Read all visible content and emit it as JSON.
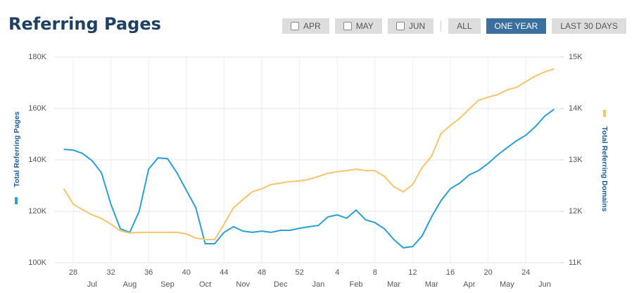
{
  "header": {
    "title": "Referring Pages"
  },
  "controls": {
    "checkboxes": [
      "APR",
      "MAY",
      "JUN"
    ],
    "buttons": [
      "ALL",
      "ONE YEAR",
      "LAST 30 DAYS"
    ],
    "active_button": 1
  },
  "chart_data": {
    "type": "line",
    "categories": [
      null,
      "28",
      null,
      null,
      null,
      "32",
      null,
      null,
      null,
      "36",
      null,
      null,
      null,
      "40",
      null,
      null,
      null,
      "44",
      null,
      null,
      null,
      "48",
      null,
      null,
      null,
      "52",
      null,
      null,
      null,
      "4",
      null,
      null,
      null,
      "8",
      null,
      null,
      null,
      "12",
      null,
      null,
      null,
      "16",
      null,
      null,
      null,
      "20",
      null,
      null,
      null,
      "24",
      null,
      null,
      null
    ],
    "month_labels": [
      null,
      null,
      null,
      "Jul",
      null,
      null,
      null,
      "Aug",
      null,
      null,
      null,
      "Sep",
      null,
      null,
      null,
      "Oct",
      null,
      null,
      null,
      "Nov",
      null,
      null,
      null,
      "Dec",
      null,
      null,
      null,
      "Jan",
      null,
      null,
      null,
      "Feb",
      null,
      null,
      null,
      "Mar",
      null,
      null,
      null,
      "Mar",
      null,
      null,
      null,
      "Apr",
      null,
      null,
      null,
      "May",
      null,
      null,
      null,
      "Jun",
      null
    ],
    "series": [
      {
        "name": "Total Referring Pages",
        "color": "#2a9fd6",
        "values": [
          144100,
          143800,
          142500,
          139700,
          135000,
          122700,
          113200,
          111800,
          120000,
          136400,
          140800,
          140500,
          135000,
          128200,
          121400,
          107400,
          107400,
          111800,
          114000,
          112300,
          111800,
          112300,
          111800,
          112600,
          112600,
          113400,
          114000,
          114500,
          117800,
          118600,
          117300,
          120500,
          116700,
          115600,
          113200,
          109000,
          105800,
          106300,
          110400,
          117800,
          124100,
          128800,
          131000,
          134200,
          135900,
          138600,
          141900,
          144700,
          147400,
          149600,
          152900,
          157000,
          159700
        ]
      },
      {
        "name": "Total Referring Domains",
        "color": "#f7c46c",
        "axis": "y2",
        "values": [
          12440,
          12140,
          12030,
          11930,
          11860,
          11750,
          11620,
          11580,
          11590,
          11590,
          11590,
          11590,
          11590,
          11560,
          11480,
          11450,
          11450,
          11750,
          12070,
          12230,
          12380,
          12440,
          12520,
          12550,
          12580,
          12590,
          12620,
          12680,
          12740,
          12770,
          12790,
          12820,
          12790,
          12790,
          12680,
          12480,
          12380,
          12520,
          12850,
          13070,
          13510,
          13670,
          13810,
          13990,
          14160,
          14220,
          14270,
          14360,
          14410,
          14520,
          14630,
          14710,
          14770
        ]
      }
    ],
    "ylim": [
      100000,
      180000
    ],
    "yticks": [
      {
        "value": 100000,
        "label": "100K"
      },
      {
        "value": 120000,
        "label": "120K"
      },
      {
        "value": 140000,
        "label": "140K"
      },
      {
        "value": 160000,
        "label": "160K"
      },
      {
        "value": 180000,
        "label": "180K"
      }
    ],
    "y2lim": [
      11000,
      15000
    ],
    "y2ticks": [
      {
        "value": 11000,
        "label": "11K"
      },
      {
        "value": 12000,
        "label": "12K"
      },
      {
        "value": 13000,
        "label": "13K"
      },
      {
        "value": 14000,
        "label": "14K"
      },
      {
        "value": 15000,
        "label": "15K"
      }
    ],
    "grid": true
  }
}
